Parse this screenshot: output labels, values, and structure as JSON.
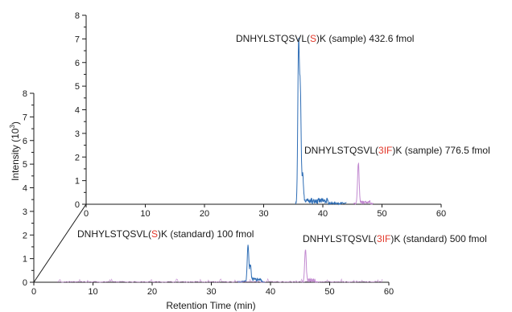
{
  "chart_data": {
    "type": "line",
    "description_free": true,
    "xlabel": "Retention Time (min)",
    "ylabel": "Intensity (10",
    "ylabel_sup": "3",
    "ylabel_close": ")",
    "xlim": [
      0,
      60
    ],
    "ylim": [
      0,
      8
    ],
    "x_ticks": [
      0,
      10,
      20,
      30,
      40,
      50,
      60
    ],
    "y_ticks": [
      0,
      1,
      2,
      3,
      4,
      5,
      6,
      7,
      8
    ],
    "colors": {
      "native": "#2e6db5",
      "labeled": "#c28ad0",
      "highlight": "#e3392b",
      "axis": "#1a1a1a"
    },
    "panels": [
      {
        "id": "sample",
        "series": [
          {
            "color_key": "native",
            "peaks": [
              {
                "x": 35.9,
                "y": 6.6
              },
              {
                "x": 36.2,
                "y": 4.5
              },
              {
                "x": 36.6,
                "y": 1.1
              }
            ]
          },
          {
            "color_key": "labeled",
            "peaks": [
              {
                "x": 46.0,
                "y": 1.7
              }
            ]
          }
        ],
        "annotations": [
          {
            "prefix": "DNHYLSTQSVL(",
            "mod": "S",
            "suffix": ")K (sample) 432.6 fmol"
          },
          {
            "prefix": "DNHYLSTQSVL(",
            "mod": "3IF",
            "suffix": ")K (sample) 776.5 fmol"
          }
        ]
      },
      {
        "id": "standard",
        "series": [
          {
            "color_key": "native",
            "peaks": [
              {
                "x": 36.2,
                "y": 1.55
              },
              {
                "x": 36.6,
                "y": 0.6
              }
            ]
          },
          {
            "color_key": "labeled",
            "peaks": [
              {
                "x": 45.9,
                "y": 1.35
              }
            ]
          }
        ],
        "annotations": [
          {
            "prefix": "DNHYLSTQSVL(",
            "mod": "S",
            "suffix": ")K (standard) 100 fmol"
          },
          {
            "prefix": "DNHYLSTQSVL(",
            "mod": "3IF",
            "suffix": ")K (standard) 500 fmol"
          }
        ]
      }
    ]
  }
}
